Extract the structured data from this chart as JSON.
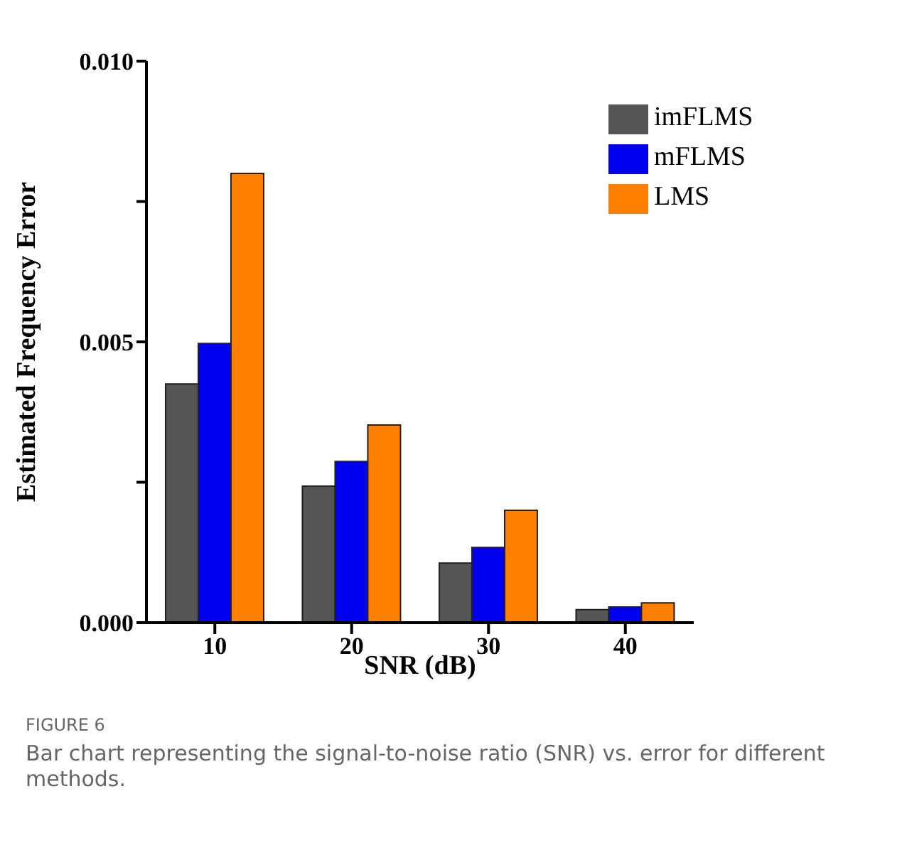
{
  "chart_data": {
    "type": "bar",
    "categories": [
      "10",
      "20",
      "30",
      "40"
    ],
    "series": [
      {
        "name": "imFLMS",
        "color": "#555555",
        "values": [
          0.00425,
          0.00243,
          0.00106,
          0.00023
        ]
      },
      {
        "name": "mFLMS",
        "color": "#0000ee",
        "values": [
          0.00497,
          0.00287,
          0.00134,
          0.00028
        ]
      },
      {
        "name": "LMS",
        "color": "#ff8000",
        "values": [
          0.008,
          0.00352,
          0.002,
          0.00035
        ]
      }
    ],
    "xlabel": "SNR (dB)",
    "ylabel": "Estimated Frequency Error",
    "ylim": [
      0,
      0.01
    ],
    "yticks": [
      {
        "value": 0,
        "label": "0.000"
      },
      {
        "value": 0.0025,
        "label": null
      },
      {
        "value": 0.005,
        "label": "0.005"
      },
      {
        "value": 0.0075,
        "label": null
      },
      {
        "value": 0.01,
        "label": "0.010"
      }
    ],
    "legend": "top right",
    "grid": false,
    "annotations": [
      "FIGURE 6",
      "Bar chart representing the signal-to-noise ratio (SNR) vs. error for different methods."
    ]
  }
}
